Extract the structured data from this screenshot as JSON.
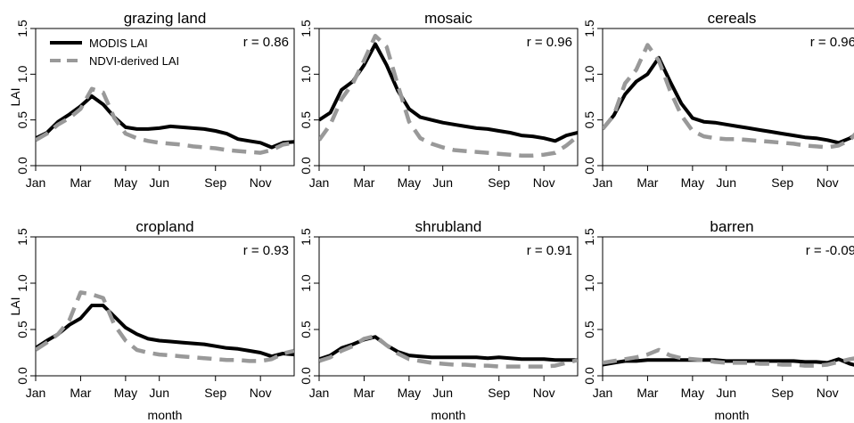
{
  "chart_data": {
    "type": "line",
    "layout": "2x3 panel grid",
    "ylabel": "LAI",
    "xlabel": "month",
    "ylim": [
      0,
      1.5
    ],
    "yticks": [
      "0.0",
      "0.5",
      "1.0",
      "1.5"
    ],
    "xticks": [
      "Jan",
      "Mar",
      "May",
      "Jun",
      "Sep",
      "Nov"
    ],
    "legend": {
      "position": "top-left of first panel",
      "entries": [
        {
          "name": "MODIS LAI",
          "color": "#000000",
          "style": "solid"
        },
        {
          "name": "NDVI-derived LAI",
          "color": "#999999",
          "style": "dashed"
        }
      ]
    },
    "panels": [
      {
        "title": "grazing land",
        "r_label": "r = 0.86",
        "series": [
          {
            "name": "MODIS LAI",
            "x": [
              0,
              1,
              2,
              3,
              4,
              5,
              6,
              7,
              8,
              9,
              10,
              11,
              12,
              13,
              14,
              15,
              16,
              17,
              18,
              19,
              20,
              21,
              22,
              23
            ],
            "values": [
              0.3,
              0.36,
              0.48,
              0.56,
              0.65,
              0.76,
              0.67,
              0.53,
              0.42,
              0.4,
              0.4,
              0.41,
              0.43,
              0.42,
              0.41,
              0.4,
              0.38,
              0.35,
              0.29,
              0.27,
              0.25,
              0.2,
              0.25,
              0.26
            ]
          },
          {
            "name": "NDVI-derived LAI",
            "x": [
              0,
              1,
              2,
              3,
              4,
              5,
              6,
              7,
              8,
              9,
              10,
              11,
              12,
              13,
              14,
              15,
              16,
              17,
              18,
              19,
              20,
              21,
              22,
              23
            ],
            "values": [
              0.28,
              0.35,
              0.45,
              0.52,
              0.62,
              0.84,
              0.8,
              0.52,
              0.35,
              0.3,
              0.27,
              0.25,
              0.24,
              0.23,
              0.21,
              0.2,
              0.19,
              0.17,
              0.16,
              0.15,
              0.14,
              0.17,
              0.23,
              0.25
            ]
          }
        ]
      },
      {
        "title": "mosaic",
        "r_label": "r = 0.96",
        "series": [
          {
            "name": "MODIS LAI",
            "x": [
              0,
              1,
              2,
              3,
              4,
              5,
              6,
              7,
              8,
              9,
              10,
              11,
              12,
              13,
              14,
              15,
              16,
              17,
              18,
              19,
              20,
              21,
              22,
              23
            ],
            "values": [
              0.5,
              0.58,
              0.83,
              0.92,
              1.1,
              1.33,
              1.1,
              0.82,
              0.62,
              0.53,
              0.5,
              0.47,
              0.45,
              0.43,
              0.41,
              0.4,
              0.38,
              0.36,
              0.33,
              0.32,
              0.3,
              0.27,
              0.33,
              0.36
            ]
          },
          {
            "name": "NDVI-derived LAI",
            "x": [
              0,
              1,
              2,
              3,
              4,
              5,
              6,
              7,
              8,
              9,
              10,
              11,
              12,
              13,
              14,
              15,
              16,
              17,
              18,
              19,
              20,
              21,
              22,
              23
            ],
            "values": [
              0.28,
              0.45,
              0.73,
              0.9,
              1.15,
              1.42,
              1.3,
              0.88,
              0.48,
              0.3,
              0.24,
              0.2,
              0.17,
              0.16,
              0.15,
              0.14,
              0.13,
              0.12,
              0.11,
              0.11,
              0.12,
              0.14,
              0.22,
              0.32
            ]
          }
        ]
      },
      {
        "title": "cereals",
        "r_label": "r = 0.96",
        "series": [
          {
            "name": "MODIS LAI",
            "x": [
              0,
              1,
              2,
              3,
              4,
              5,
              6,
              7,
              8,
              9,
              10,
              11,
              12,
              13,
              14,
              15,
              16,
              17,
              18,
              19,
              20,
              21,
              22,
              23
            ],
            "values": [
              0.4,
              0.55,
              0.78,
              0.92,
              1.0,
              1.18,
              0.92,
              0.68,
              0.52,
              0.48,
              0.47,
              0.45,
              0.43,
              0.41,
              0.39,
              0.37,
              0.35,
              0.33,
              0.31,
              0.3,
              0.28,
              0.25,
              0.3,
              0.38
            ]
          },
          {
            "name": "NDVI-derived LAI",
            "x": [
              0,
              1,
              2,
              3,
              4,
              5,
              6,
              7,
              8,
              9,
              10,
              11,
              12,
              13,
              14,
              15,
              16,
              17,
              18,
              19,
              20,
              21,
              22,
              23
            ],
            "values": [
              0.4,
              0.55,
              0.9,
              1.05,
              1.32,
              1.15,
              0.82,
              0.55,
              0.38,
              0.32,
              0.3,
              0.29,
              0.29,
              0.28,
              0.27,
              0.26,
              0.25,
              0.24,
              0.22,
              0.21,
              0.2,
              0.22,
              0.28,
              0.42
            ]
          }
        ]
      },
      {
        "title": "cropland",
        "r_label": "r = 0.93",
        "series": [
          {
            "name": "MODIS LAI",
            "x": [
              0,
              1,
              2,
              3,
              4,
              5,
              6,
              7,
              8,
              9,
              10,
              11,
              12,
              13,
              14,
              15,
              16,
              17,
              18,
              19,
              20,
              21,
              22,
              23
            ],
            "values": [
              0.3,
              0.38,
              0.45,
              0.55,
              0.62,
              0.76,
              0.76,
              0.64,
              0.52,
              0.45,
              0.4,
              0.38,
              0.37,
              0.36,
              0.35,
              0.34,
              0.32,
              0.3,
              0.29,
              0.27,
              0.25,
              0.21,
              0.24,
              0.23
            ]
          },
          {
            "name": "NDVI-derived LAI",
            "x": [
              0,
              1,
              2,
              3,
              4,
              5,
              6,
              7,
              8,
              9,
              10,
              11,
              12,
              13,
              14,
              15,
              16,
              17,
              18,
              19,
              20,
              21,
              22,
              23
            ],
            "values": [
              0.28,
              0.36,
              0.45,
              0.6,
              0.9,
              0.88,
              0.84,
              0.55,
              0.38,
              0.28,
              0.25,
              0.23,
              0.22,
              0.21,
              0.2,
              0.19,
              0.18,
              0.17,
              0.17,
              0.16,
              0.16,
              0.18,
              0.24,
              0.27
            ]
          }
        ]
      },
      {
        "title": "shrubland",
        "r_label": "r = 0.91",
        "series": [
          {
            "name": "MODIS LAI",
            "x": [
              0,
              1,
              2,
              3,
              4,
              5,
              6,
              7,
              8,
              9,
              10,
              11,
              12,
              13,
              14,
              15,
              16,
              17,
              18,
              19,
              20,
              21,
              22,
              23
            ],
            "values": [
              0.18,
              0.22,
              0.3,
              0.34,
              0.39,
              0.42,
              0.33,
              0.26,
              0.22,
              0.21,
              0.2,
              0.2,
              0.2,
              0.2,
              0.2,
              0.19,
              0.2,
              0.19,
              0.18,
              0.18,
              0.18,
              0.17,
              0.17,
              0.17
            ]
          },
          {
            "name": "NDVI-derived LAI",
            "x": [
              0,
              1,
              2,
              3,
              4,
              5,
              6,
              7,
              8,
              9,
              10,
              11,
              12,
              13,
              14,
              15,
              16,
              17,
              18,
              19,
              20,
              21,
              22,
              23
            ],
            "values": [
              0.16,
              0.2,
              0.27,
              0.32,
              0.4,
              0.43,
              0.33,
              0.24,
              0.18,
              0.16,
              0.14,
              0.13,
              0.12,
              0.12,
              0.11,
              0.11,
              0.1,
              0.1,
              0.1,
              0.1,
              0.1,
              0.11,
              0.14,
              0.17
            ]
          }
        ]
      },
      {
        "title": "barren",
        "r_label": "r = -0.09",
        "series": [
          {
            "name": "MODIS LAI",
            "x": [
              0,
              1,
              2,
              3,
              4,
              5,
              6,
              7,
              8,
              9,
              10,
              11,
              12,
              13,
              14,
              15,
              16,
              17,
              18,
              19,
              20,
              21,
              22,
              23
            ],
            "values": [
              0.12,
              0.14,
              0.16,
              0.16,
              0.17,
              0.17,
              0.17,
              0.17,
              0.17,
              0.17,
              0.17,
              0.16,
              0.16,
              0.16,
              0.16,
              0.16,
              0.16,
              0.16,
              0.15,
              0.15,
              0.14,
              0.18,
              0.13,
              0.1
            ]
          },
          {
            "name": "NDVI-derived LAI",
            "x": [
              0,
              1,
              2,
              3,
              4,
              5,
              6,
              7,
              8,
              9,
              10,
              11,
              12,
              13,
              14,
              15,
              16,
              17,
              18,
              19,
              20,
              21,
              22,
              23
            ],
            "values": [
              0.14,
              0.16,
              0.18,
              0.2,
              0.23,
              0.28,
              0.22,
              0.19,
              0.18,
              0.17,
              0.15,
              0.14,
              0.14,
              0.14,
              0.13,
              0.13,
              0.12,
              0.12,
              0.11,
              0.11,
              0.12,
              0.15,
              0.18,
              0.2
            ]
          }
        ]
      }
    ]
  }
}
